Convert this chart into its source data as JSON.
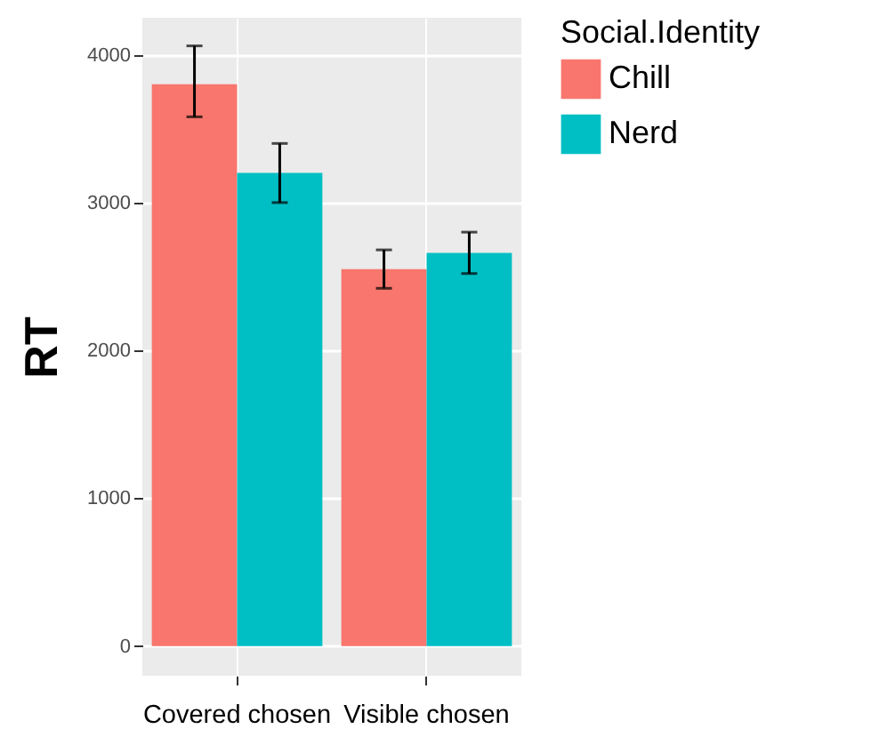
{
  "chart_data": {
    "type": "bar",
    "ylabel": "RT",
    "legend_title": "Social.Identity",
    "categories": [
      "Covered chosen",
      "Visible chosen"
    ],
    "series": [
      {
        "name": "Chill",
        "color": "#f8766d",
        "values": [
          3800,
          2550
        ],
        "errors": [
          [
            3580,
            4060
          ],
          [
            2420,
            2680
          ]
        ]
      },
      {
        "name": "Nerd",
        "color": "#00bfc4",
        "values": [
          3200,
          2660
        ],
        "errors": [
          [
            3000,
            3400
          ],
          [
            2520,
            2800
          ]
        ]
      }
    ],
    "ylim": [
      -200,
      4250
    ],
    "yticks": [
      0,
      1000,
      2000,
      3000,
      4000
    ],
    "grid": true,
    "legend": "right"
  }
}
